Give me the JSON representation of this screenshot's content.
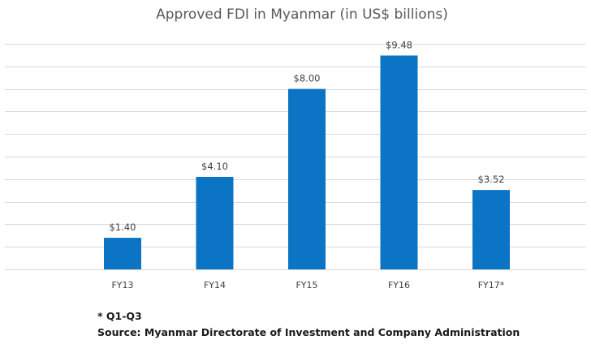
{
  "chart_data": {
    "type": "bar",
    "title": "Approved FDI in Myanmar (in US$ billions)",
    "categories": [
      "FY13",
      "FY14",
      "FY15",
      "FY16",
      "FY17*"
    ],
    "values": [
      1.4,
      4.1,
      8.0,
      9.48,
      3.52
    ],
    "data_labels": [
      "$1.40",
      "$4.10",
      "$8.00",
      "$9.48",
      "$3.52"
    ],
    "xlabel": "",
    "ylabel": "",
    "ylim": [
      0,
      10
    ],
    "grid": true,
    "y_axis_labels_shown": false,
    "legend": "none",
    "bar_color": "#0b74c5"
  },
  "footnote": "* Q1-Q3",
  "source": "Source: Myanmar Directorate of Investment and Company Administration"
}
